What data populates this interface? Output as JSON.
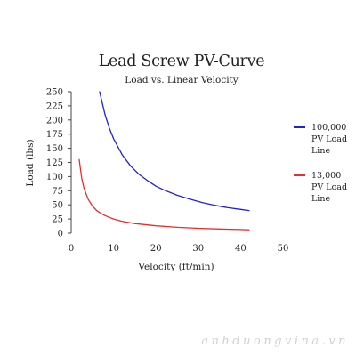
{
  "chart_data": {
    "type": "line",
    "title": "Lead Screw PV-Curve",
    "subtitle": "Load vs. Linear Velocity",
    "xlabel": "Velocity (ft/min)",
    "ylabel": "Load (lbs)",
    "xlim": [
      0,
      50
    ],
    "ylim": [
      0,
      250
    ],
    "x_ticks": [
      0,
      10,
      20,
      30,
      40,
      50
    ],
    "y_ticks": [
      0,
      25,
      50,
      75,
      100,
      125,
      150,
      175,
      200,
      225,
      250
    ],
    "grid": false,
    "legend_position": "right",
    "series": [
      {
        "name": "100,000 PV Load Line",
        "color": "#2222cc",
        "x": [
          6.7,
          8,
          9,
          10,
          12,
          14,
          16,
          18,
          20,
          22,
          25,
          28,
          31,
          34,
          37,
          40,
          42
        ],
        "y": [
          250,
          209,
          186,
          167,
          139,
          119,
          104,
          93,
          83,
          76,
          67,
          60,
          54,
          49,
          45,
          42,
          40
        ]
      },
      {
        "name": "13,000 PV Load Line",
        "color": "#e03030",
        "x": [
          1.9,
          2.5,
          3,
          4,
          5,
          6,
          7,
          8,
          10,
          12,
          15,
          20,
          25,
          30,
          35,
          40,
          42
        ],
        "y": [
          130,
          96,
          80,
          60,
          48,
          40,
          35,
          31,
          25,
          21,
          17,
          13,
          10.4,
          8.7,
          7.4,
          6.5,
          6
        ]
      }
    ]
  },
  "watermark": "anhduongvina.vn"
}
